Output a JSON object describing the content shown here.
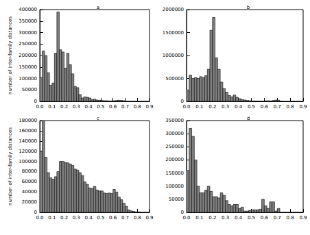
{
  "chart_data": [
    {
      "type": "histogram",
      "title": "a",
      "y_label": "number of inter-family distances",
      "color": "#808080",
      "bins": [
        0,
        0.02,
        0.04,
        0.06,
        0.08,
        0.1,
        0.12,
        0.14,
        0.16,
        0.18,
        0.2,
        0.22,
        0.24,
        0.26,
        0.28,
        0.3,
        0.32,
        0.34,
        0.36,
        0.38,
        0.4,
        0.42,
        0.44,
        0.46,
        0.48,
        0.5,
        0.52,
        0.54,
        0.56,
        0.58,
        0.6,
        0.62,
        0.64,
        0.66,
        0.68,
        0.7,
        0.72,
        0.74,
        0.76,
        0.78,
        0.8,
        0.82,
        0.84,
        0.86,
        0.88,
        0.9
      ],
      "values": [
        105000,
        220000,
        200000,
        125000,
        70000,
        80000,
        210000,
        390000,
        225000,
        215000,
        145000,
        210000,
        160000,
        120000,
        65000,
        60000,
        30000,
        15000,
        20000,
        18000,
        15000,
        8000,
        10000,
        6000,
        5000,
        4000,
        3000,
        3000,
        2000,
        2000,
        3000,
        4000,
        5000,
        4000,
        3000,
        1000,
        0,
        0,
        0,
        0,
        0,
        0,
        0,
        0,
        0
      ],
      "xlim": [
        0,
        0.9
      ],
      "xticks": [
        {
          "value": 0,
          "label": "0.0"
        },
        0.1,
        0.2,
        0.3,
        0.4,
        0.5,
        0.6,
        0.7,
        0.8,
        0.9
      ],
      "ylim": [
        0,
        400000
      ],
      "yticks": [
        0,
        50000,
        100000,
        150000,
        200000,
        250000,
        300000,
        350000,
        400000
      ]
    },
    {
      "type": "histogram",
      "title": "b",
      "color": "#808080",
      "bins": [
        0,
        0.02,
        0.04,
        0.06,
        0.08,
        0.1,
        0.12,
        0.14,
        0.16,
        0.18,
        0.2,
        0.22,
        0.24,
        0.26,
        0.28,
        0.3,
        0.32,
        0.34,
        0.36,
        0.38,
        0.4,
        0.42,
        0.44,
        0.46,
        0.48,
        0.5,
        0.52,
        0.54,
        0.56,
        0.58,
        0.6,
        0.62,
        0.64,
        0.66,
        0.68,
        0.7,
        0.72,
        0.74,
        0.76,
        0.78,
        0.8,
        0.82,
        0.84,
        0.86,
        0.88,
        0.9
      ],
      "values": [
        250000,
        570000,
        500000,
        520000,
        500000,
        540000,
        520000,
        560000,
        700000,
        1550000,
        1830000,
        950000,
        700000,
        420000,
        280000,
        200000,
        130000,
        100000,
        140000,
        90000,
        60000,
        40000,
        30000,
        20000,
        15000,
        10000,
        10000,
        8000,
        8000,
        6000,
        10000,
        15000,
        10000,
        20000,
        30000,
        25000,
        5000,
        0,
        0,
        0,
        0,
        0,
        0,
        0,
        0
      ],
      "xlim": [
        0,
        0.9
      ],
      "xticks": [
        {
          "value": 0,
          "label": "0.0"
        },
        0.1,
        0.2,
        0.3,
        0.4,
        0.5,
        0.6,
        0.7,
        0.8,
        0.9
      ],
      "ylim": [
        0,
        2000000
      ],
      "yticks": [
        0,
        500000,
        1000000,
        1500000,
        2000000
      ]
    },
    {
      "type": "histogram",
      "title": "c",
      "y_label": "number of inter-family distances",
      "color": "#808080",
      "bins": [
        0,
        0.02,
        0.04,
        0.06,
        0.08,
        0.1,
        0.12,
        0.14,
        0.16,
        0.18,
        0.2,
        0.22,
        0.24,
        0.26,
        0.28,
        0.3,
        0.32,
        0.34,
        0.36,
        0.38,
        0.4,
        0.42,
        0.44,
        0.46,
        0.48,
        0.5,
        0.52,
        0.54,
        0.56,
        0.58,
        0.6,
        0.62,
        0.64,
        0.66,
        0.68,
        0.7,
        0.72,
        0.74,
        0.76,
        0.78,
        0.8,
        0.82,
        0.84,
        0.86,
        0.88,
        0.9
      ],
      "values": [
        120000,
        180000,
        108000,
        78000,
        68000,
        65000,
        70000,
        80000,
        100000,
        100000,
        98000,
        97000,
        95000,
        92000,
        85000,
        83000,
        78000,
        72000,
        60000,
        55000,
        48000,
        47000,
        51000,
        44000,
        42000,
        42000,
        38000,
        37000,
        38000,
        37000,
        45000,
        40000,
        30000,
        25000,
        18000,
        12000,
        5000,
        3000,
        2000,
        1000,
        1000,
        500,
        0,
        0,
        0
      ],
      "xlim": [
        0,
        0.9
      ],
      "xticks": [
        {
          "value": 0,
          "label": "0.0"
        },
        0.1,
        0.2,
        0.3,
        0.4,
        0.5,
        0.6,
        0.7,
        0.8,
        0.9
      ],
      "ylim": [
        0,
        180000
      ],
      "yticks": [
        0,
        20000,
        40000,
        60000,
        80000,
        100000,
        120000,
        140000,
        160000,
        180000
      ]
    },
    {
      "type": "histogram",
      "title": "d",
      "color": "#808080",
      "bins": [
        0,
        0.02,
        0.04,
        0.06,
        0.08,
        0.1,
        0.12,
        0.14,
        0.16,
        0.18,
        0.2,
        0.22,
        0.24,
        0.26,
        0.28,
        0.3,
        0.32,
        0.34,
        0.36,
        0.38,
        0.4,
        0.42,
        0.44,
        0.46,
        0.48,
        0.5,
        0.52,
        0.54,
        0.56,
        0.58,
        0.6,
        0.62,
        0.64,
        0.66,
        0.68,
        0.7,
        0.72,
        0.74,
        0.76,
        0.78,
        0.8,
        0.82,
        0.84,
        0.86,
        0.88,
        0.9
      ],
      "values": [
        160000,
        320000,
        290000,
        200000,
        100000,
        75000,
        75000,
        85000,
        100000,
        80000,
        60000,
        60000,
        55000,
        75000,
        65000,
        45000,
        30000,
        25000,
        30000,
        30000,
        15000,
        20000,
        5000,
        5000,
        8000,
        10000,
        10000,
        10000,
        12000,
        50000,
        25000,
        15000,
        40000,
        40000,
        5000,
        15000,
        0,
        0,
        0,
        0,
        0,
        0,
        0,
        0,
        0
      ],
      "xlim": [
        0,
        0.9
      ],
      "xticks": [
        {
          "value": 0,
          "label": "0.0"
        },
        0.1,
        0.2,
        0.3,
        0.4,
        0.5,
        0.6,
        0.7,
        0.8,
        0.9
      ],
      "ylim": [
        0,
        350000
      ],
      "yticks": [
        0,
        50000,
        100000,
        150000,
        200000,
        250000,
        300000,
        350000
      ]
    }
  ]
}
